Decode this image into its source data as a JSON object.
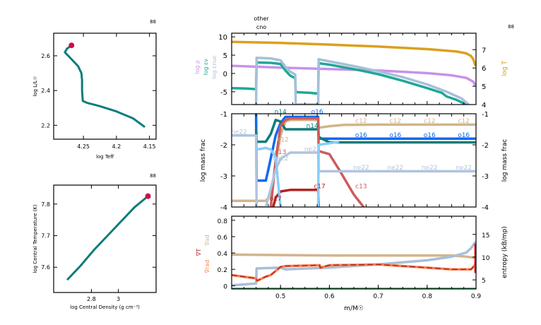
{
  "model_number": "88",
  "top_annotations": [
    "other",
    "cno"
  ],
  "chart_data": [
    {
      "id": "hr",
      "type": "line",
      "title": "",
      "xlabel": "log Teff",
      "ylabel": "log L/L☉",
      "xlim": [
        4.295,
        4.14
      ],
      "ylim": [
        2.12,
        2.73
      ],
      "xticks": [
        4.25,
        4.2,
        4.15
      ],
      "xtick_labels": [
        "4.25",
        "4.2",
        "4.15"
      ],
      "yticks": [
        2.2,
        2.4,
        2.6
      ],
      "ytick_labels": [
        "2.2",
        "2.4",
        "2.6"
      ],
      "series": [
        {
          "name": "track",
          "color": "#0e7c7b",
          "x": [
            4.157,
            4.175,
            4.2,
            4.225,
            4.245,
            4.251,
            4.252,
            4.252,
            4.253,
            4.258,
            4.268,
            4.278,
            4.275,
            4.268
          ],
          "y": [
            2.19,
            2.24,
            2.28,
            2.31,
            2.33,
            2.34,
            2.4,
            2.46,
            2.5,
            2.54,
            2.58,
            2.62,
            2.64,
            2.66
          ]
        }
      ],
      "marker": {
        "x": 4.268,
        "y": 2.66,
        "color": "#d10c47"
      }
    },
    {
      "id": "center",
      "type": "line",
      "title": "",
      "xlabel": "log Central Density (g cm⁻³)",
      "ylabel": "log Central Temperature (K)",
      "xlim": [
        2.52,
        3.28
      ],
      "ylim": [
        7.52,
        7.86
      ],
      "xticks": [
        2.8,
        3.0
      ],
      "xtick_labels": [
        "2.8",
        "3"
      ],
      "yticks": [
        7.6,
        7.7,
        7.8
      ],
      "ytick_labels": [
        "7.6",
        "7.7",
        "7.8"
      ],
      "series": [
        {
          "name": "track",
          "color": "#0e7c7b",
          "x": [
            2.62,
            2.72,
            2.82,
            2.92,
            3.02,
            3.12,
            3.22
          ],
          "y": [
            7.56,
            7.605,
            7.655,
            7.7,
            7.745,
            7.79,
            7.825
          ]
        }
      ],
      "marker": {
        "x": 3.22,
        "y": 7.825,
        "color": "#d10c47"
      }
    },
    {
      "id": "profile-top",
      "type": "line",
      "xlim": [
        0.4,
        0.9
      ],
      "ylim_left": [
        -8.5,
        11
      ],
      "ylim_right": [
        4,
        7.9
      ],
      "yticks_left": [
        -5,
        0,
        5,
        10
      ],
      "ytick_labels_left": [
        "-5",
        "0",
        "5",
        "10"
      ],
      "yticks_right": [
        4,
        5,
        6,
        7
      ],
      "ytick_labels_right": [
        "4",
        "5",
        "6",
        "7"
      ],
      "ylabels_left": [
        {
          "text": "log ρ",
          "color": "#c792ea"
        },
        {
          "text": "log εν",
          "color": "#1ea896"
        },
        {
          "text": "log εnuc",
          "color": "#a7bfd9"
        }
      ],
      "ylabel_right": {
        "text": "log T",
        "color": "#daa01e"
      },
      "series": [
        {
          "name": "log T",
          "axis": "right",
          "color": "#daa01e",
          "x": [
            0.4,
            0.5,
            0.6,
            0.7,
            0.8,
            0.86,
            0.88,
            0.89,
            0.895,
            0.899
          ],
          "y": [
            7.43,
            7.37,
            7.28,
            7.17,
            7.03,
            6.9,
            6.8,
            6.65,
            6.45,
            6.1
          ]
        },
        {
          "name": "log rho",
          "axis": "left",
          "color": "#c792ea",
          "x": [
            0.4,
            0.5,
            0.6,
            0.7,
            0.8,
            0.85,
            0.88,
            0.895,
            0.899
          ],
          "y": [
            2.1,
            1.6,
            1.2,
            0.8,
            0.1,
            -0.5,
            -1.2,
            -2.3,
            -3.5
          ]
        },
        {
          "name": "log eps_nu",
          "axis": "left",
          "color": "#1ea896",
          "x": [
            0.4,
            0.43,
            0.45,
            0.451,
            0.48,
            0.5,
            0.51,
            0.52,
            0.53,
            0.531,
            0.56,
            0.577,
            0.578,
            0.6,
            0.65,
            0.7,
            0.75,
            0.8,
            0.83,
            0.84,
            0.86,
            0.88
          ],
          "y": [
            -4,
            -4.1,
            -4.3,
            3.0,
            2.9,
            2.6,
            0.8,
            -0.6,
            -1.3,
            -5.1,
            -5.3,
            -5.5,
            2.8,
            2.4,
            1.2,
            -0.2,
            -2,
            -4,
            -5.3,
            -6.3,
            -7.2,
            -8.5
          ]
        },
        {
          "name": "log eps_nuc",
          "axis": "left",
          "color": "#a7bfd9",
          "x": [
            0.45,
            0.451,
            0.48,
            0.5,
            0.51,
            0.52,
            0.53,
            0.531,
            0.577,
            0.578,
            0.6,
            0.65,
            0.7,
            0.75,
            0.8,
            0.84,
            0.87,
            0.885
          ],
          "y": [
            -8.5,
            4.3,
            4.1,
            3.6,
            1.8,
            0.5,
            -0.3,
            -8.5,
            -8.5,
            3.9,
            3.3,
            2.0,
            0.6,
            -1,
            -3,
            -5,
            -6.8,
            -8.5
          ]
        }
      ]
    },
    {
      "id": "profile-abund",
      "type": "line",
      "xlim": [
        0.4,
        0.9
      ],
      "ylim": [
        -4,
        -1
      ],
      "yticks": [
        -4,
        -3,
        -2,
        -1
      ],
      "ytick_labels": [
        "-4",
        "-3",
        "-2",
        "-1"
      ],
      "ylabel_left": "log mass frac",
      "ylabel_right": "log mass frac",
      "series": [
        {
          "name": "c12",
          "color": "#d2b48c",
          "x": [
            0.4,
            0.47,
            0.48,
            0.49,
            0.5,
            0.51,
            0.52,
            0.577,
            0.578,
            0.6,
            0.63,
            0.7,
            0.9
          ],
          "y": [
            -3.8,
            -3.8,
            -3.6,
            -2.6,
            -1.7,
            -1.25,
            -1.2,
            -1.2,
            -1.45,
            -1.4,
            -1.36,
            -1.35,
            -1.35
          ]
        },
        {
          "name": "o16",
          "color": "#1069f0",
          "x": [
            0.45,
            0.451,
            0.47,
            0.475,
            0.49,
            0.5,
            0.51,
            0.577,
            0.578,
            0.9
          ],
          "y": [
            -1.0,
            -3.15,
            -3.15,
            -2.8,
            -1.7,
            -1.3,
            -1.1,
            -1.1,
            -1.8,
            -1.8
          ]
        },
        {
          "name": "n14",
          "color": "#0e7c7b",
          "x": [
            0.45,
            0.451,
            0.47,
            0.48,
            0.49,
            0.5,
            0.51,
            0.52,
            0.577,
            0.578,
            0.6,
            0.9
          ],
          "y": [
            -1.5,
            -1.9,
            -1.9,
            -1.65,
            -1.2,
            -1.25,
            -1.5,
            -1.5,
            -1.5,
            -1.75,
            -1.92,
            -1.92
          ]
        },
        {
          "name": "c13",
          "color": "#cd5c5c",
          "x": [
            0.48,
            0.49,
            0.5,
            0.51,
            0.52,
            0.577,
            0.578,
            0.6,
            0.62,
            0.65,
            0.67
          ],
          "y": [
            -4,
            -2.5,
            -1.4,
            -1.2,
            -1.15,
            -1.15,
            -2.2,
            -2.3,
            -2.8,
            -3.6,
            -4
          ]
        },
        {
          "name": "ne22",
          "color": "#b0c4de",
          "x": [
            0.4,
            0.45,
            0.451,
            0.47,
            0.48,
            0.49,
            0.5,
            0.52,
            0.577,
            0.578,
            0.9
          ],
          "y": [
            -1.7,
            -1.7,
            -4,
            -4,
            -3.4,
            -2.8,
            -2.45,
            -2.25,
            -2.25,
            -2.85,
            -2.85
          ]
        },
        {
          "name": "o17",
          "color": "#b22222",
          "x": [
            0.485,
            0.49,
            0.5,
            0.52,
            0.577,
            0.578
          ],
          "y": [
            -4,
            -3.7,
            -3.5,
            -3.45,
            -3.45,
            -4
          ]
        },
        {
          "name": "n15",
          "color": "#87cefa",
          "x": [
            0.45,
            0.451,
            0.47,
            0.48,
            0.49,
            0.495,
            0.5
          ],
          "y": [
            -2.2,
            -2.15,
            -2.1,
            -2.15,
            -2.4,
            -3.2,
            -4
          ]
        },
        {
          "name": "n15b",
          "color": "#87cefa",
          "x": [
            0.577,
            0.578,
            0.6,
            0.62
          ],
          "y": [
            -4,
            -2.0,
            -1.95,
            -1.9
          ]
        }
      ],
      "labels": [
        {
          "text": "ne22",
          "x": 0.415,
          "y": -1.65,
          "color": "#b0c4de"
        },
        {
          "text": "n14",
          "x": 0.5,
          "y": -1.0,
          "color": "#0e7c7b"
        },
        {
          "text": "o16",
          "x": 0.575,
          "y": -1.0,
          "color": "#1069f0"
        },
        {
          "text": "n14",
          "x": 0.565,
          "y": -1.45,
          "color": "#0e7c7b"
        },
        {
          "text": "c12",
          "x": 0.505,
          "y": -1.9,
          "color": "#d2b48c"
        },
        {
          "text": "c13",
          "x": 0.5,
          "y": -2.3,
          "color": "#cd5c5c"
        },
        {
          "text": "ne22",
          "x": 0.5,
          "y": -2.5,
          "color": "#b0c4de"
        },
        {
          "text": "ne22",
          "x": 0.565,
          "y": -2.2,
          "color": "#b0c4de"
        },
        {
          "text": "c17",
          "x": 0.58,
          "y": -3.4,
          "color": "#b22222"
        },
        {
          "text": "c13",
          "x": 0.665,
          "y": -3.4,
          "color": "#cd5c5c"
        },
        {
          "text": "o17",
          "x": 0.49,
          "y": -3.8,
          "color": "#b22222"
        },
        {
          "text": "c12",
          "x": 0.665,
          "y": -1.3,
          "color": "#d2b48c"
        },
        {
          "text": "c12",
          "x": 0.735,
          "y": -1.3,
          "color": "#d2b48c"
        },
        {
          "text": "c12",
          "x": 0.805,
          "y": -1.3,
          "color": "#d2b48c"
        },
        {
          "text": "c12",
          "x": 0.875,
          "y": -1.3,
          "color": "#d2b48c"
        },
        {
          "text": "o16",
          "x": 0.665,
          "y": -1.75,
          "color": "#1069f0"
        },
        {
          "text": "o16",
          "x": 0.735,
          "y": -1.75,
          "color": "#1069f0"
        },
        {
          "text": "o16",
          "x": 0.805,
          "y": -1.75,
          "color": "#1069f0"
        },
        {
          "text": "o16",
          "x": 0.875,
          "y": -1.75,
          "color": "#1069f0"
        },
        {
          "text": "ne22",
          "x": 0.665,
          "y": -2.8,
          "color": "#b0c4de"
        },
        {
          "text": "ne22",
          "x": 0.735,
          "y": -2.8,
          "color": "#b0c4de"
        },
        {
          "text": "ne22",
          "x": 0.805,
          "y": -2.8,
          "color": "#b0c4de"
        },
        {
          "text": "ne22",
          "x": 0.875,
          "y": -2.8,
          "color": "#b0c4de"
        }
      ]
    },
    {
      "id": "profile-grad",
      "type": "line",
      "xlim": [
        0.4,
        0.9
      ],
      "xlabel": "m/M☉",
      "xticks": [
        0.5,
        0.6,
        0.7,
        0.8,
        0.9
      ],
      "xtick_labels": [
        "0.5",
        "0.6",
        "0.7",
        "0.8",
        "0.9"
      ],
      "ylim_left": [
        -0.04,
        0.85
      ],
      "ylim_right": [
        3,
        19
      ],
      "yticks_left": [
        0,
        0.2,
        0.4,
        0.6,
        0.8
      ],
      "ytick_labels_left": [
        "0",
        "0.2",
        "0.4",
        "0.6",
        "0.8"
      ],
      "yticks_right": [
        5,
        10,
        15
      ],
      "ytick_labels_right": [
        "5",
        "10",
        "15"
      ],
      "ylabels_left": [
        {
          "text": "∇ad",
          "color": "#d2b48c"
        },
        {
          "text": "∇T",
          "color": "#a52a2a"
        },
        {
          "text": "∇rad",
          "color": "#ff7f50"
        }
      ],
      "ylabel_right": "entropy (kB/mp)",
      "series": [
        {
          "name": "grad_ad",
          "axis": "left",
          "color": "#d2b48c",
          "x": [
            0.4,
            0.5,
            0.6,
            0.7,
            0.8,
            0.85,
            0.88,
            0.9
          ],
          "y": [
            0.38,
            0.375,
            0.37,
            0.37,
            0.37,
            0.37,
            0.355,
            0.34
          ]
        },
        {
          "name": "entropy",
          "axis": "right",
          "color": "#a7bfd9",
          "x": [
            0.4,
            0.45,
            0.451,
            0.5,
            0.51,
            0.6,
            0.7,
            0.8,
            0.85,
            0.88,
            0.89,
            0.9
          ],
          "y": [
            3.8,
            4.2,
            7.5,
            7.7,
            7.3,
            7.7,
            8.4,
            9.3,
            10.1,
            11.0,
            12.0,
            13.5
          ]
        },
        {
          "name": "grad_rad",
          "axis": "left",
          "color": "#ff7f50",
          "x": [
            0.4,
            0.45,
            0.452,
            0.47,
            0.48,
            0.5,
            0.51,
            0.58,
            0.581,
            0.6,
            0.7,
            0.8,
            0.85,
            0.89,
            0.9
          ],
          "y": [
            0.13,
            0.09,
            0.06,
            0.11,
            0.13,
            0.23,
            0.24,
            0.25,
            0.22,
            0.25,
            0.26,
            0.22,
            0.2,
            0.2,
            0.27
          ]
        },
        {
          "name": "grad_T",
          "axis": "left",
          "color": "#a52a2a",
          "dashed": true,
          "x": [
            0.4,
            0.45,
            0.452,
            0.47,
            0.48,
            0.5,
            0.51,
            0.58,
            0.581,
            0.6,
            0.7,
            0.8,
            0.85,
            0.89,
            0.9
          ],
          "y": [
            0.13,
            0.09,
            0.06,
            0.11,
            0.13,
            0.23,
            0.24,
            0.25,
            0.22,
            0.25,
            0.26,
            0.22,
            0.2,
            0.2,
            0.27
          ]
        },
        {
          "name": "zero-line",
          "axis": "left",
          "color": "#2e8b57",
          "x": [
            0.4,
            0.9
          ],
          "y": [
            -0.04,
            -0.04
          ]
        }
      ]
    }
  ]
}
